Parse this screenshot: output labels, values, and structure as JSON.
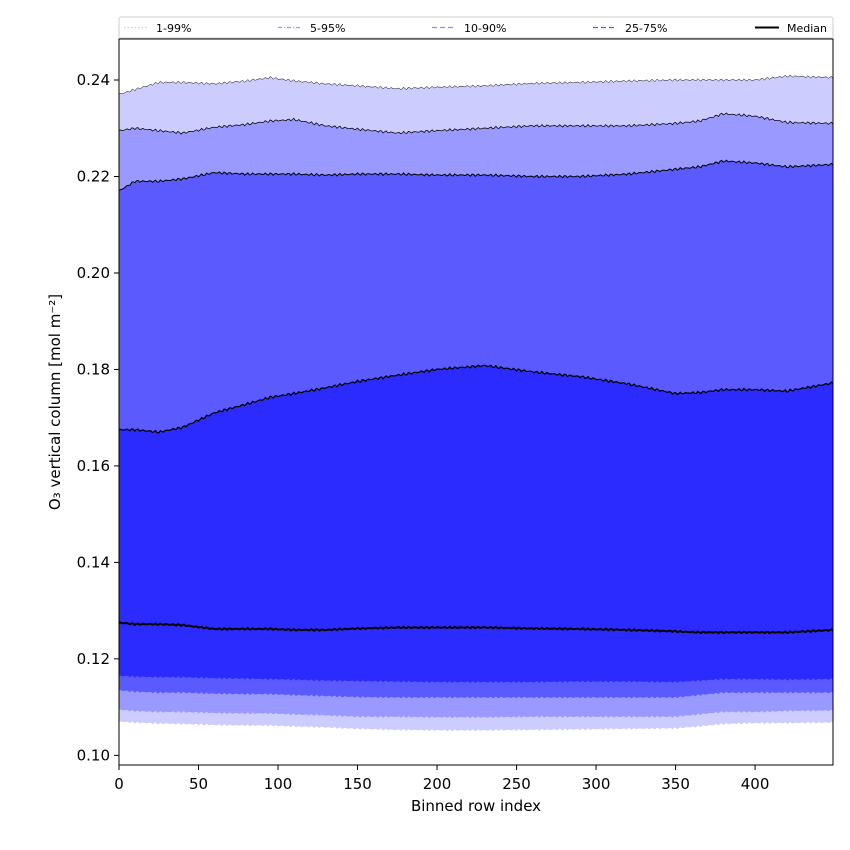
{
  "chart_data": {
    "type": "area",
    "title": "",
    "xlabel": "Binned row index",
    "ylabel": "O₃ vertical column [mol m⁻²]",
    "xlim": [
      0,
      449
    ],
    "ylim": [
      0.098,
      0.2485
    ],
    "xticks": [
      0,
      50,
      100,
      150,
      200,
      250,
      300,
      350,
      400
    ],
    "yticks": [
      0.1,
      0.12,
      0.14,
      0.16,
      0.18,
      0.2,
      0.22,
      0.24
    ],
    "ytick_labels": [
      "0.10",
      "0.12",
      "0.14",
      "0.16",
      "0.18",
      "0.20",
      "0.22",
      "0.24"
    ],
    "grid": false,
    "legend_position": "top",
    "legend": [
      {
        "label": "1-99%",
        "style": "dotted",
        "color": "#ccccff"
      },
      {
        "label": "5-95%",
        "style": "dashdot",
        "color": "#9a9aff"
      },
      {
        "label": "10-90%",
        "style": "dashed",
        "color": "#8888ff"
      },
      {
        "label": "25-75%",
        "style": "dashed",
        "color": "#5555ff"
      },
      {
        "label": "Median",
        "style": "solid",
        "color": "#000000"
      }
    ],
    "x": [
      0,
      10,
      25,
      40,
      60,
      80,
      95,
      110,
      130,
      150,
      175,
      200,
      230,
      260,
      290,
      320,
      350,
      365,
      380,
      400,
      420,
      449
    ],
    "bands": [
      {
        "name": "1-99%",
        "color": "#ccccff",
        "upper": [
          0.237,
          0.238,
          0.2395,
          0.2395,
          0.2392,
          0.2398,
          0.2405,
          0.2398,
          0.2392,
          0.2388,
          0.2382,
          0.2385,
          0.2388,
          0.2393,
          0.2395,
          0.2398,
          0.24,
          0.24,
          0.24,
          0.24,
          0.2408,
          0.2405
        ],
        "lower": [
          0.107,
          0.1068,
          0.1066,
          0.1065,
          0.1063,
          0.1062,
          0.1062,
          0.106,
          0.1058,
          0.1055,
          0.1053,
          0.1052,
          0.1052,
          0.1053,
          0.1054,
          0.1055,
          0.1056,
          0.106,
          0.1065,
          0.1067,
          0.1067,
          0.1068
        ]
      },
      {
        "name": "5-95%",
        "color": "#9999ff",
        "upper": [
          0.2295,
          0.23,
          0.2295,
          0.229,
          0.2302,
          0.2308,
          0.2315,
          0.2318,
          0.2305,
          0.2298,
          0.229,
          0.2295,
          0.23,
          0.2305,
          0.2305,
          0.2305,
          0.231,
          0.2315,
          0.233,
          0.2325,
          0.2312,
          0.231
        ],
        "lower": [
          0.1095,
          0.1092,
          0.109,
          0.109,
          0.1088,
          0.1087,
          0.1087,
          0.1085,
          0.1083,
          0.108,
          0.108,
          0.1079,
          0.1079,
          0.108,
          0.108,
          0.108,
          0.108,
          0.1085,
          0.109,
          0.109,
          0.1092,
          0.1093
        ]
      },
      {
        "name": "10-90%",
        "color": "#5a5aff",
        "upper": [
          0.217,
          0.219,
          0.219,
          0.2195,
          0.2208,
          0.2205,
          0.2205,
          0.2205,
          0.2203,
          0.2205,
          0.2205,
          0.2203,
          0.2203,
          0.22,
          0.22,
          0.2205,
          0.2215,
          0.222,
          0.2232,
          0.2228,
          0.222,
          0.2225
        ],
        "lower": [
          0.1135,
          0.1132,
          0.113,
          0.113,
          0.1128,
          0.1127,
          0.1127,
          0.1125,
          0.1123,
          0.1121,
          0.112,
          0.112,
          0.112,
          0.112,
          0.112,
          0.112,
          0.112,
          0.1125,
          0.113,
          0.113,
          0.113,
          0.113
        ]
      },
      {
        "name": "25-75%",
        "color": "#2b2bff",
        "upper": [
          0.1675,
          0.1675,
          0.167,
          0.168,
          0.171,
          0.1728,
          0.1742,
          0.175,
          0.1762,
          0.1775,
          0.1788,
          0.18,
          0.1808,
          0.1795,
          0.1785,
          0.177,
          0.175,
          0.1752,
          0.1758,
          0.1758,
          0.1755,
          0.1772
        ],
        "lower": [
          0.1165,
          0.1163,
          0.1162,
          0.1162,
          0.116,
          0.1159,
          0.1158,
          0.1157,
          0.1155,
          0.1154,
          0.1153,
          0.1152,
          0.1152,
          0.1152,
          0.1153,
          0.1153,
          0.1152,
          0.1155,
          0.1158,
          0.1158,
          0.1157,
          0.1158
        ]
      }
    ],
    "median": {
      "name": "Median",
      "color": "#000000",
      "values": [
        0.1275,
        0.1272,
        0.1272,
        0.127,
        0.1262,
        0.1262,
        0.1262,
        0.126,
        0.126,
        0.1263,
        0.1265,
        0.1265,
        0.1265,
        0.1263,
        0.1262,
        0.126,
        0.1257,
        0.1255,
        0.1255,
        0.1255,
        0.1255,
        0.126
      ]
    }
  }
}
